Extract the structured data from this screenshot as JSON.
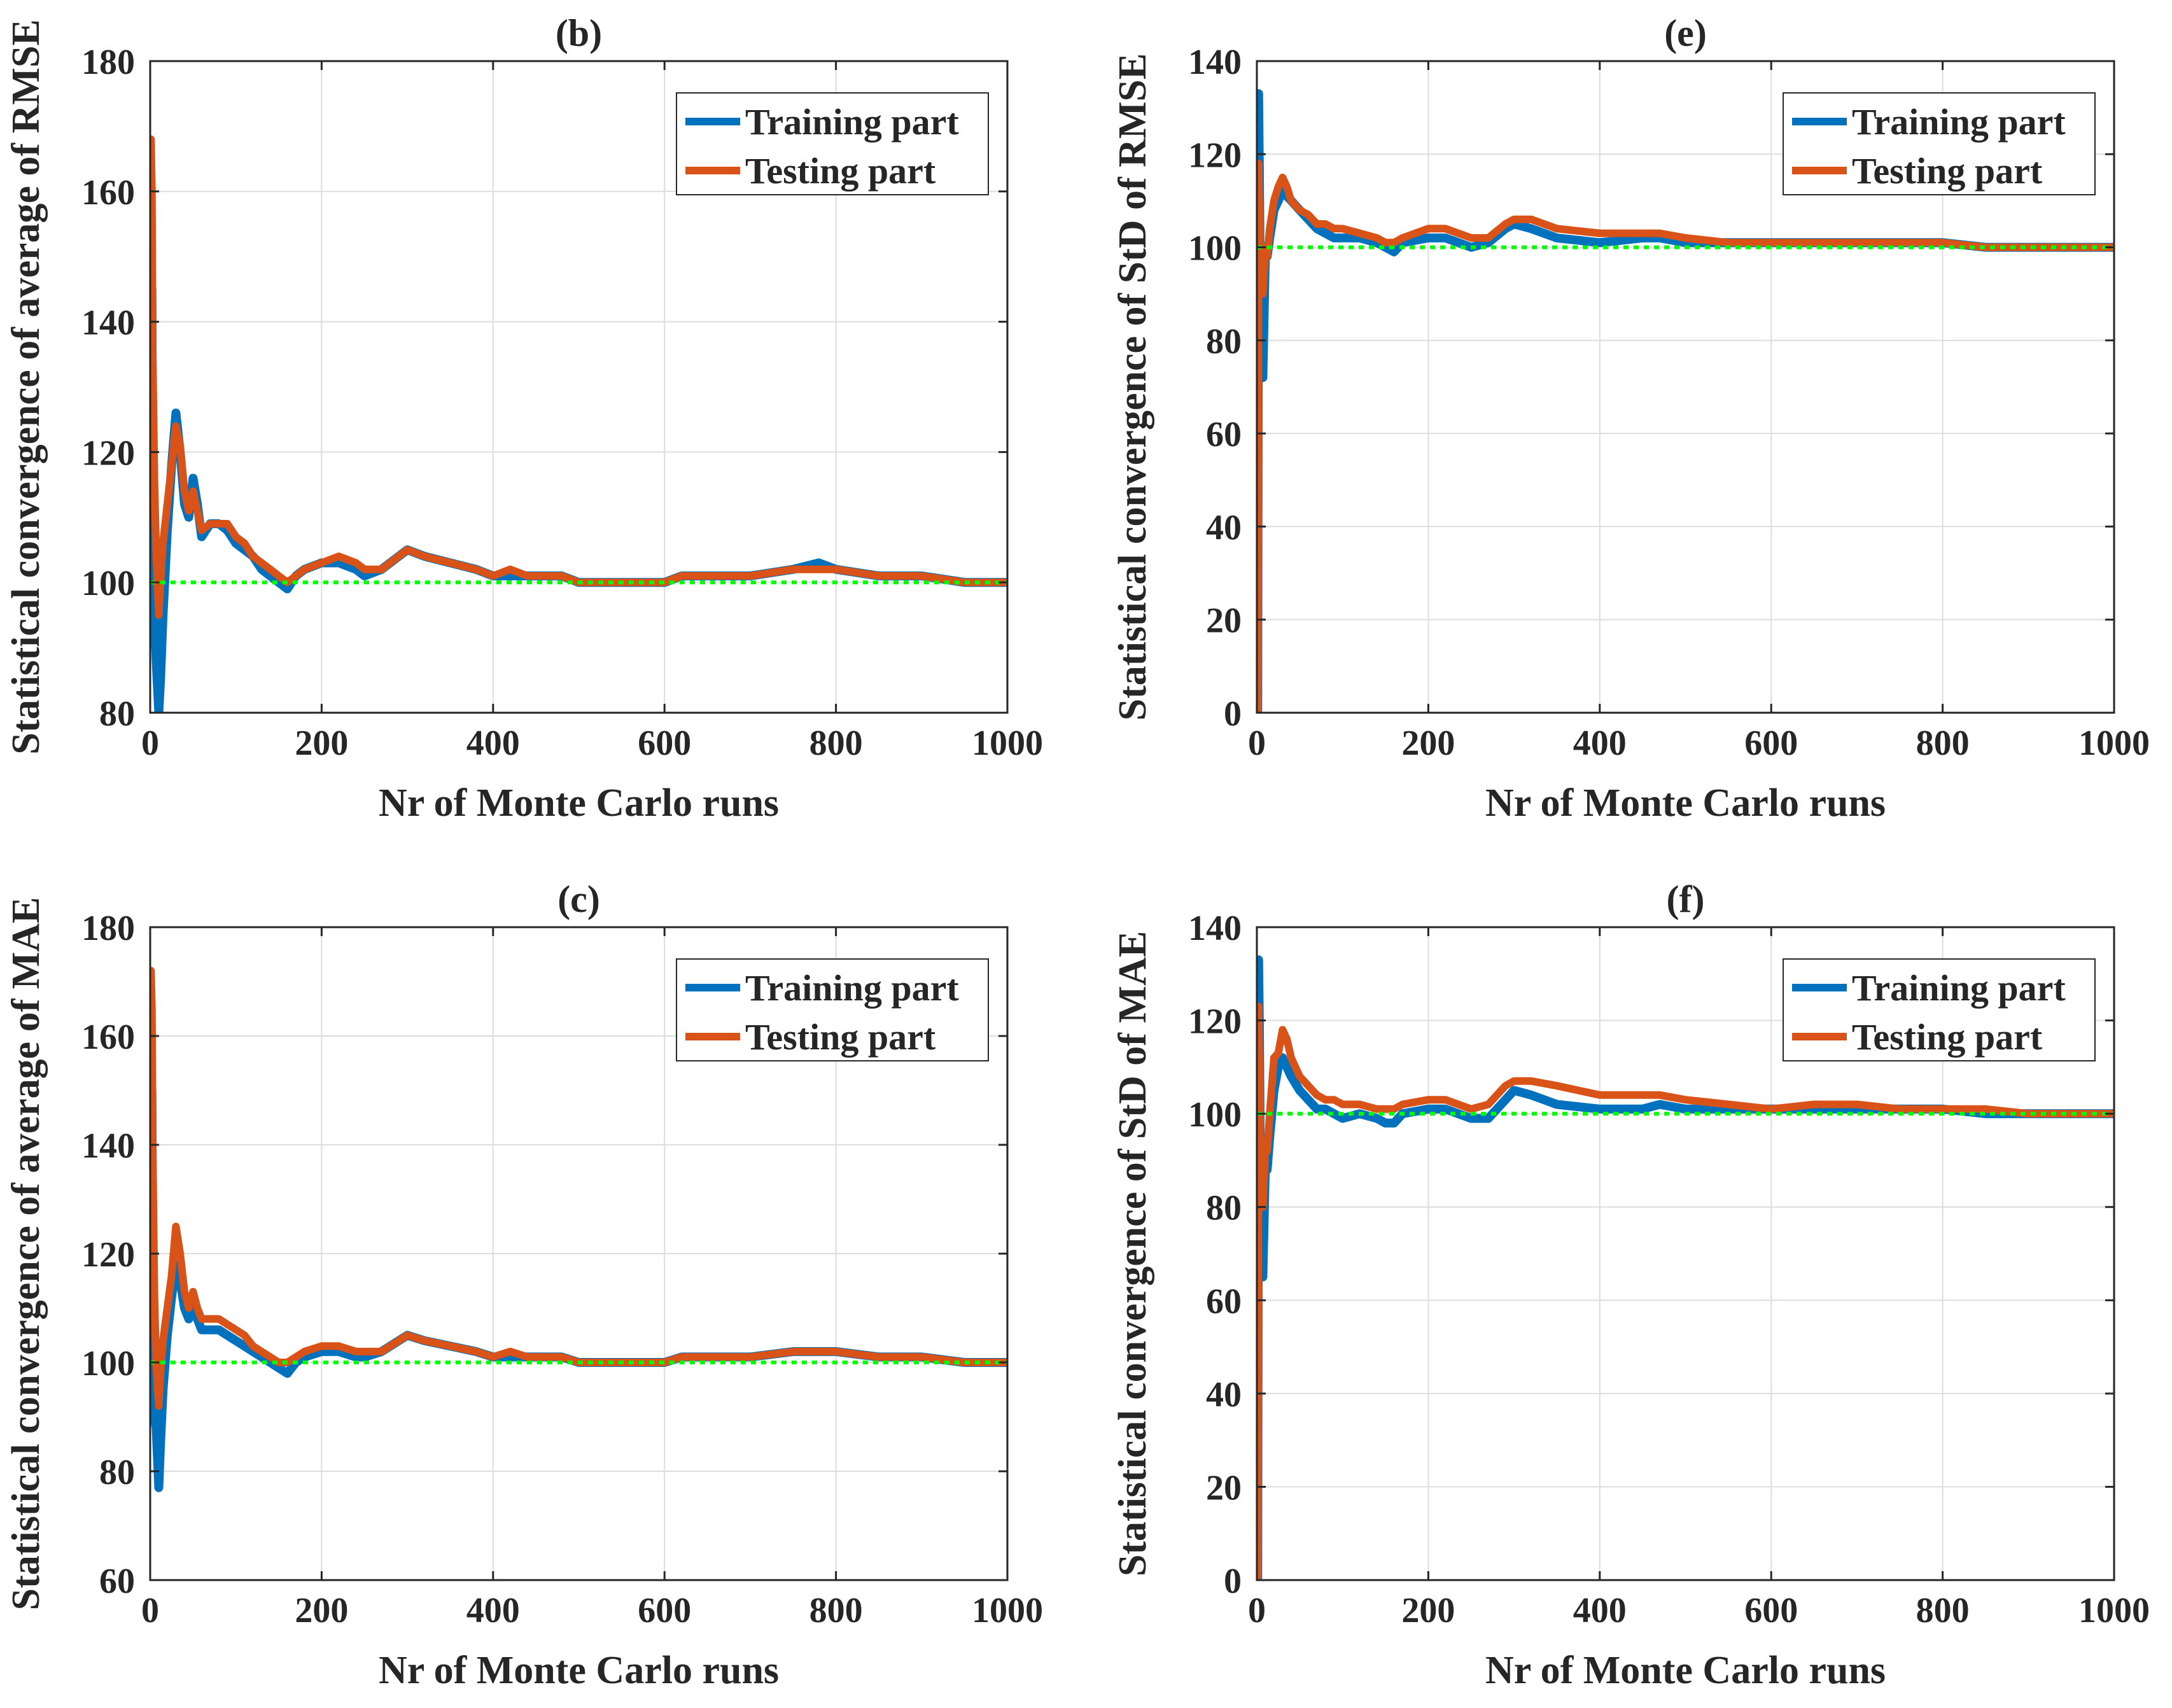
{
  "colors": {
    "training": "#0072BD",
    "testing": "#D95319",
    "reference": "#00FF00",
    "axes": "#262626",
    "grid": "#dddddd"
  },
  "chart_data": [
    {
      "id": "b",
      "type": "line",
      "title": "(b)",
      "xlabel": "Nr of Monte Carlo runs",
      "ylabel": "Statistical convergence of average of RMSE",
      "xlim": [
        0,
        1000
      ],
      "ylim": [
        80,
        180
      ],
      "xticks": [
        0,
        200,
        400,
        600,
        800,
        1000
      ],
      "yticks": [
        80,
        100,
        120,
        140,
        160,
        180
      ],
      "grid": true,
      "legend_position": "top-right",
      "reference_line": 100,
      "series": [
        {
          "name": "Training part",
          "x": [
            1,
            2,
            3,
            4,
            5,
            7,
            10,
            12,
            15,
            20,
            25,
            30,
            35,
            40,
            45,
            50,
            55,
            60,
            70,
            80,
            90,
            100,
            110,
            120,
            130,
            140,
            150,
            160,
            170,
            180,
            200,
            220,
            240,
            250,
            270,
            290,
            300,
            320,
            350,
            380,
            400,
            420,
            440,
            460,
            480,
            500,
            520,
            550,
            580,
            600,
            620,
            650,
            700,
            750,
            780,
            800,
            850,
            900,
            950,
            1000
          ],
          "y": [
            120,
            145,
            110,
            118,
            95,
            88,
            80,
            85,
            95,
            108,
            118,
            126,
            120,
            112,
            110,
            116,
            112,
            107,
            109,
            109,
            108,
            106,
            105,
            104,
            102,
            101,
            100,
            99,
            101,
            102,
            103,
            103,
            102,
            101,
            102,
            104,
            105,
            104,
            103,
            102,
            101,
            101,
            101,
            101,
            101,
            100,
            100,
            100,
            100,
            100,
            101,
            101,
            101,
            102,
            103,
            102,
            101,
            101,
            100,
            100
          ]
        },
        {
          "name": "Testing part",
          "x": [
            1,
            2,
            3,
            4,
            5,
            7,
            10,
            12,
            15,
            20,
            25,
            30,
            35,
            40,
            45,
            50,
            55,
            60,
            70,
            80,
            90,
            100,
            110,
            120,
            130,
            140,
            150,
            160,
            170,
            180,
            200,
            220,
            240,
            250,
            270,
            290,
            300,
            320,
            350,
            380,
            400,
            420,
            440,
            460,
            480,
            500,
            520,
            550,
            580,
            600,
            620,
            650,
            700,
            750,
            780,
            800,
            850,
            900,
            950,
            1000
          ],
          "y": [
            168,
            160,
            135,
            125,
            115,
            105,
            95,
            100,
            106,
            112,
            118,
            124,
            121,
            114,
            111,
            114,
            111,
            108,
            109,
            109,
            109,
            107,
            106,
            104,
            103,
            102,
            101,
            100,
            101,
            102,
            103,
            104,
            103,
            102,
            102,
            104,
            105,
            104,
            103,
            102,
            101,
            102,
            101,
            101,
            101,
            100,
            100,
            100,
            100,
            100,
            101,
            101,
            101,
            102,
            102,
            102,
            101,
            101,
            100,
            100
          ]
        }
      ]
    },
    {
      "id": "e",
      "type": "line",
      "title": "(e)",
      "xlabel": "Nr of Monte Carlo runs",
      "ylabel": "Statistical convergence of StD of RMSE",
      "xlim": [
        0,
        1000
      ],
      "ylim": [
        0,
        140
      ],
      "xticks": [
        0,
        200,
        400,
        600,
        800,
        1000
      ],
      "yticks": [
        0,
        20,
        40,
        60,
        80,
        100,
        120,
        140
      ],
      "grid": true,
      "legend_position": "top-right",
      "reference_line": 100,
      "series": [
        {
          "name": "Training part",
          "x": [
            1,
            2,
            3,
            4,
            5,
            7,
            10,
            12,
            15,
            20,
            25,
            30,
            35,
            40,
            50,
            60,
            70,
            80,
            90,
            100,
            120,
            140,
            150,
            160,
            170,
            200,
            220,
            250,
            270,
            290,
            300,
            320,
            350,
            400,
            450,
            470,
            500,
            550,
            600,
            650,
            700,
            750,
            800,
            850,
            900,
            950,
            1000
          ],
          "y": [
            0,
            133,
            115,
            90,
            80,
            72,
            100,
            98,
            102,
            108,
            110,
            112,
            111,
            110,
            108,
            106,
            104,
            103,
            102,
            102,
            102,
            101,
            100,
            99,
            101,
            102,
            102,
            100,
            101,
            104,
            105,
            104,
            102,
            101,
            102,
            102,
            101,
            101,
            101,
            101,
            101,
            101,
            101,
            100,
            100,
            100,
            100
          ]
        },
        {
          "name": "Testing part",
          "x": [
            1,
            2,
            3,
            4,
            5,
            7,
            10,
            12,
            15,
            20,
            25,
            30,
            35,
            40,
            50,
            60,
            70,
            80,
            90,
            100,
            120,
            140,
            150,
            160,
            170,
            200,
            220,
            250,
            270,
            290,
            300,
            320,
            350,
            400,
            450,
            470,
            500,
            550,
            600,
            650,
            700,
            750,
            800,
            850,
            900,
            950,
            1000
          ],
          "y": [
            0,
            118,
            108,
            98,
            92,
            90,
            100,
            98,
            104,
            110,
            113,
            115,
            113,
            110,
            108,
            107,
            105,
            105,
            104,
            104,
            103,
            102,
            101,
            101,
            102,
            104,
            104,
            102,
            102,
            105,
            106,
            106,
            104,
            103,
            103,
            103,
            102,
            101,
            101,
            101,
            101,
            101,
            101,
            100,
            100,
            100,
            100
          ]
        }
      ]
    },
    {
      "id": "c",
      "type": "line",
      "title": "(c)",
      "xlabel": "Nr of Monte Carlo runs",
      "ylabel": "Statistical convergence of average of MAE",
      "xlim": [
        0,
        1000
      ],
      "ylim": [
        60,
        180
      ],
      "xticks": [
        0,
        200,
        400,
        600,
        800,
        1000
      ],
      "yticks": [
        60,
        80,
        100,
        120,
        140,
        160,
        180
      ],
      "grid": true,
      "legend_position": "top-right",
      "reference_line": 100,
      "series": [
        {
          "name": "Training part",
          "x": [
            1,
            2,
            3,
            4,
            5,
            7,
            10,
            12,
            15,
            20,
            25,
            30,
            35,
            40,
            45,
            50,
            55,
            60,
            70,
            80,
            90,
            100,
            110,
            120,
            130,
            140,
            150,
            160,
            170,
            180,
            200,
            220,
            240,
            250,
            270,
            290,
            300,
            320,
            350,
            380,
            400,
            420,
            440,
            460,
            480,
            500,
            520,
            550,
            580,
            600,
            620,
            650,
            700,
            750,
            780,
            800,
            850,
            900,
            950,
            1000
          ],
          "y": [
            120,
            150,
            115,
            110,
            90,
            88,
            77,
            85,
            95,
            105,
            112,
            118,
            115,
            110,
            108,
            110,
            108,
            106,
            106,
            106,
            105,
            104,
            103,
            102,
            101,
            100,
            99,
            98,
            100,
            101,
            102,
            102,
            101,
            101,
            102,
            104,
            105,
            104,
            103,
            102,
            101,
            101,
            101,
            101,
            101,
            100,
            100,
            100,
            100,
            100,
            101,
            101,
            101,
            102,
            102,
            102,
            101,
            101,
            100,
            100
          ]
        },
        {
          "name": "Testing part",
          "x": [
            1,
            2,
            3,
            4,
            5,
            7,
            10,
            12,
            15,
            20,
            25,
            30,
            35,
            40,
            45,
            50,
            55,
            60,
            70,
            80,
            90,
            100,
            110,
            120,
            130,
            140,
            150,
            160,
            170,
            180,
            200,
            220,
            240,
            250,
            270,
            290,
            300,
            320,
            350,
            380,
            400,
            420,
            440,
            460,
            480,
            500,
            520,
            550,
            580,
            600,
            620,
            650,
            700,
            750,
            780,
            800,
            850,
            900,
            950,
            1000
          ],
          "y": [
            172,
            165,
            140,
            125,
            112,
            100,
            92,
            98,
            104,
            110,
            116,
            125,
            120,
            113,
            110,
            113,
            110,
            108,
            108,
            108,
            107,
            106,
            105,
            103,
            102,
            101,
            100,
            100,
            101,
            102,
            103,
            103,
            102,
            102,
            102,
            104,
            105,
            104,
            103,
            102,
            101,
            102,
            101,
            101,
            101,
            100,
            100,
            100,
            100,
            100,
            101,
            101,
            101,
            102,
            102,
            102,
            101,
            101,
            100,
            100
          ]
        }
      ]
    },
    {
      "id": "f",
      "type": "line",
      "title": "(f)",
      "xlabel": "Nr of Monte Carlo runs",
      "ylabel": "Statistical convergence of StD of MAE",
      "xlim": [
        0,
        1000
      ],
      "ylim": [
        0,
        140
      ],
      "xticks": [
        0,
        200,
        400,
        600,
        800,
        1000
      ],
      "yticks": [
        0,
        20,
        40,
        60,
        80,
        100,
        120,
        140
      ],
      "grid": true,
      "legend_position": "top-right",
      "reference_line": 100,
      "series": [
        {
          "name": "Training part",
          "x": [
            1,
            2,
            3,
            4,
            5,
            7,
            10,
            12,
            15,
            20,
            25,
            30,
            35,
            40,
            50,
            60,
            70,
            80,
            90,
            100,
            120,
            140,
            150,
            160,
            170,
            200,
            220,
            250,
            270,
            290,
            300,
            320,
            350,
            400,
            450,
            470,
            500,
            550,
            600,
            650,
            700,
            750,
            800,
            850,
            900,
            950,
            1000
          ],
          "y": [
            0,
            133,
            118,
            88,
            75,
            65,
            90,
            88,
            95,
            105,
            110,
            112,
            110,
            108,
            105,
            103,
            101,
            101,
            100,
            99,
            100,
            99,
            98,
            98,
            100,
            101,
            101,
            99,
            99,
            103,
            105,
            104,
            102,
            101,
            101,
            102,
            101,
            101,
            101,
            101,
            101,
            101,
            101,
            100,
            100,
            100,
            100
          ]
        },
        {
          "name": "Testing part",
          "x": [
            1,
            2,
            3,
            4,
            5,
            7,
            10,
            12,
            15,
            20,
            25,
            30,
            35,
            40,
            50,
            60,
            70,
            80,
            90,
            100,
            120,
            140,
            150,
            160,
            170,
            200,
            220,
            250,
            270,
            290,
            300,
            320,
            350,
            400,
            450,
            470,
            500,
            550,
            600,
            650,
            700,
            750,
            800,
            850,
            900,
            950,
            1000
          ],
          "y": [
            0,
            123,
            110,
            95,
            85,
            80,
            93,
            92,
            100,
            112,
            113,
            118,
            116,
            112,
            108,
            106,
            104,
            103,
            103,
            102,
            102,
            101,
            101,
            101,
            102,
            103,
            103,
            101,
            102,
            106,
            107,
            107,
            106,
            104,
            104,
            104,
            103,
            102,
            101,
            102,
            102,
            101,
            101,
            101,
            100,
            100,
            100
          ]
        }
      ]
    }
  ]
}
